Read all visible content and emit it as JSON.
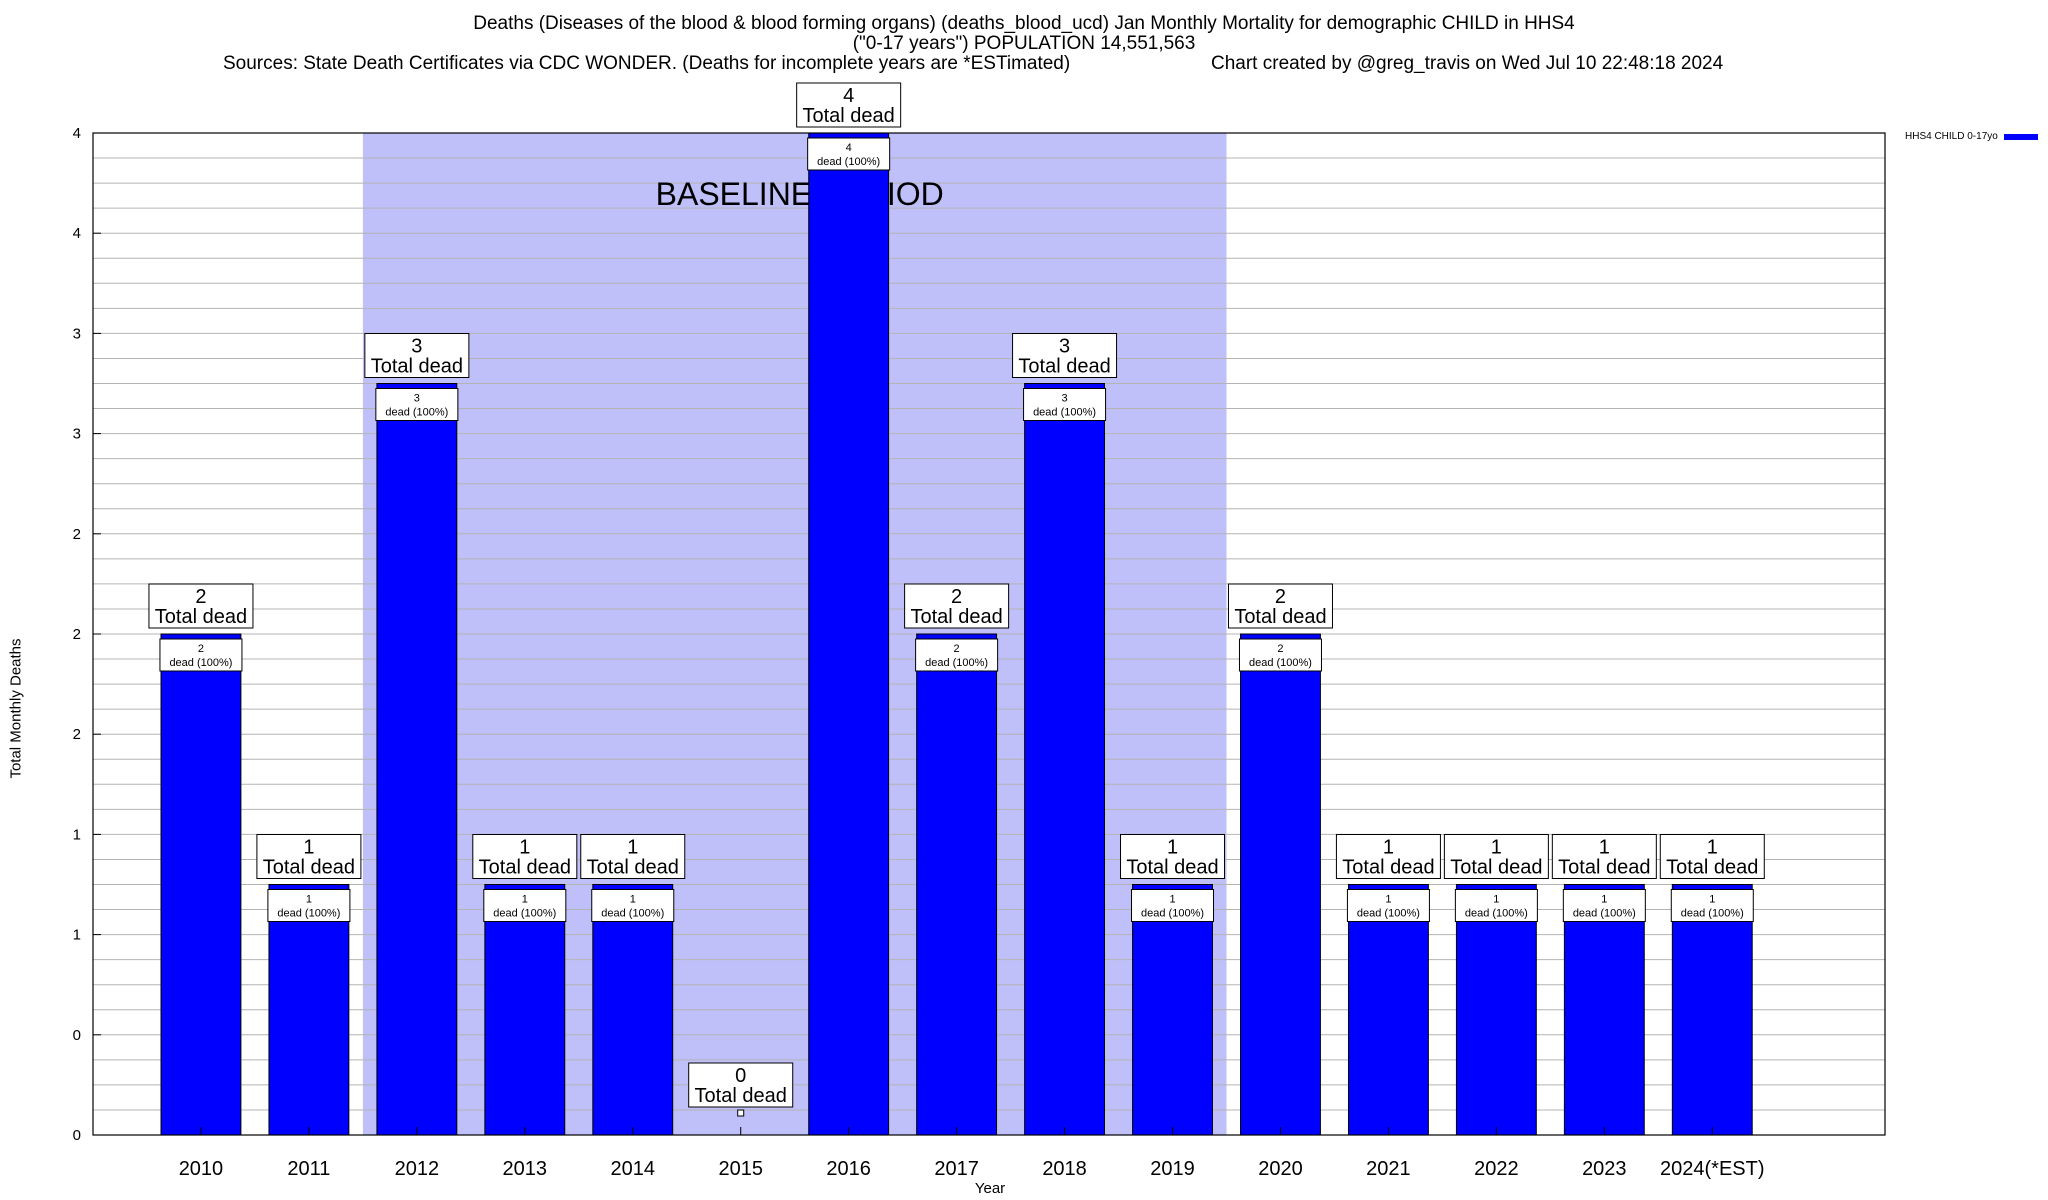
{
  "header": {
    "title_line1": "Deaths (Diseases of the blood & blood forming organs) (deaths_blood_ucd) Jan Monthly Mortality for demographic CHILD in HHS4",
    "title_line2": "(\"0-17 years\") POPULATION 14,551,563",
    "sources": "Sources: State Death Certificates via CDC WONDER. (Deaths for incomplete years are *ESTimated)",
    "credit": "Chart created by @greg_travis on Wed Jul 10 22:48:18 2024"
  },
  "chart_data": {
    "type": "bar",
    "categories": [
      "2010",
      "2011",
      "2012",
      "2013",
      "2014",
      "2015",
      "2016",
      "2017",
      "2018",
      "2019",
      "2020",
      "2021",
      "2022",
      "2023",
      "2024(*EST)"
    ],
    "series": [
      {
        "name": "HHS4 CHILD 0-17yo",
        "values": [
          2,
          1,
          3,
          1,
          1,
          0,
          4,
          2,
          3,
          1,
          2,
          1,
          1,
          1,
          1
        ]
      }
    ],
    "xlabel": "Year",
    "ylabel": "Total Monthly Deaths",
    "ylim": [
      0,
      4
    ],
    "ytick_labels": [
      "0",
      "0",
      "1",
      "1",
      "2",
      "2",
      "2",
      "3",
      "3",
      "4",
      "4"
    ],
    "grid": true,
    "legend_position": "top-right",
    "baseline_period": {
      "label": "BASELINE PERIOD",
      "from": "2012",
      "to": "2019"
    },
    "bar_label_suffix": "Total dead",
    "inner_label_suffix": "dead (100%)",
    "colors": {
      "bar": "#0000ff",
      "baseline": "#bfbff9",
      "grid": "#b4b4b4"
    }
  }
}
